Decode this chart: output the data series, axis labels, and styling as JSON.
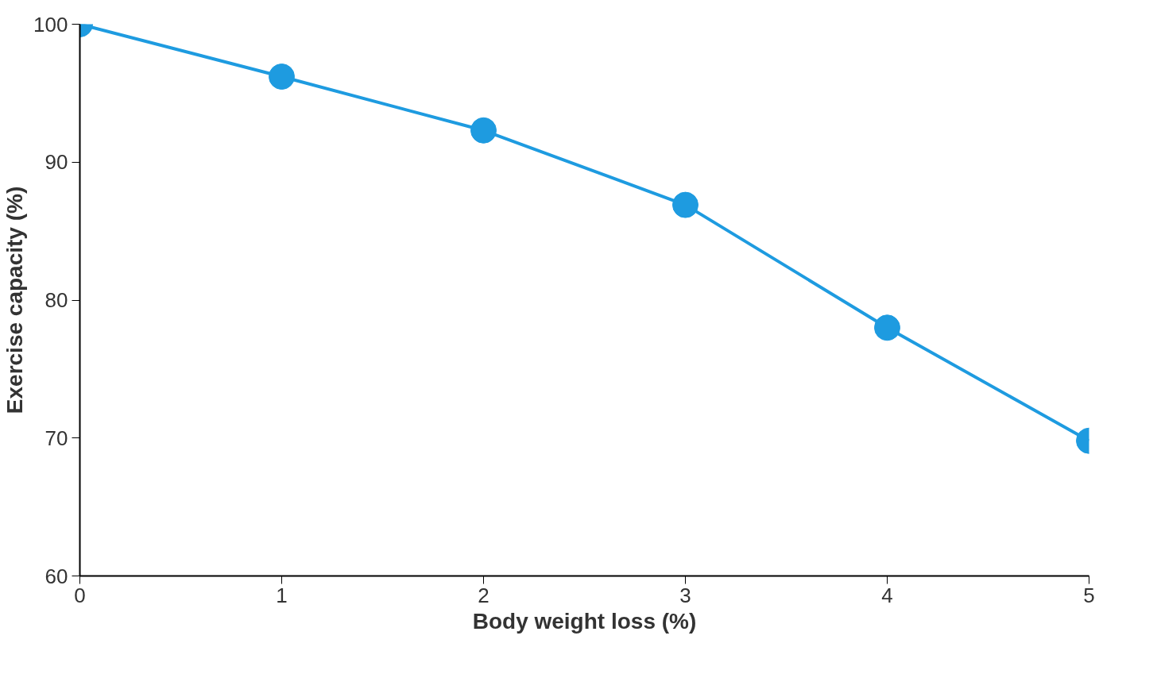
{
  "chart_data": {
    "type": "line",
    "xlabel": "Body weight loss (%)",
    "ylabel": "Exercise capacity (%)",
    "x": [
      0,
      1,
      2,
      3,
      4,
      5
    ],
    "series": [
      {
        "color": "#1e9be0",
        "values": [
          100,
          96.2,
          92.3,
          86.9,
          78,
          69.8
        ]
      }
    ],
    "xlim": [
      0,
      5
    ],
    "ylim": [
      60,
      100
    ],
    "xticks": [
      0,
      1,
      2,
      3,
      4,
      5
    ],
    "yticks": [
      60,
      70,
      80,
      90,
      100
    ],
    "grid": false,
    "marker": "circle",
    "line_style": "solid"
  }
}
